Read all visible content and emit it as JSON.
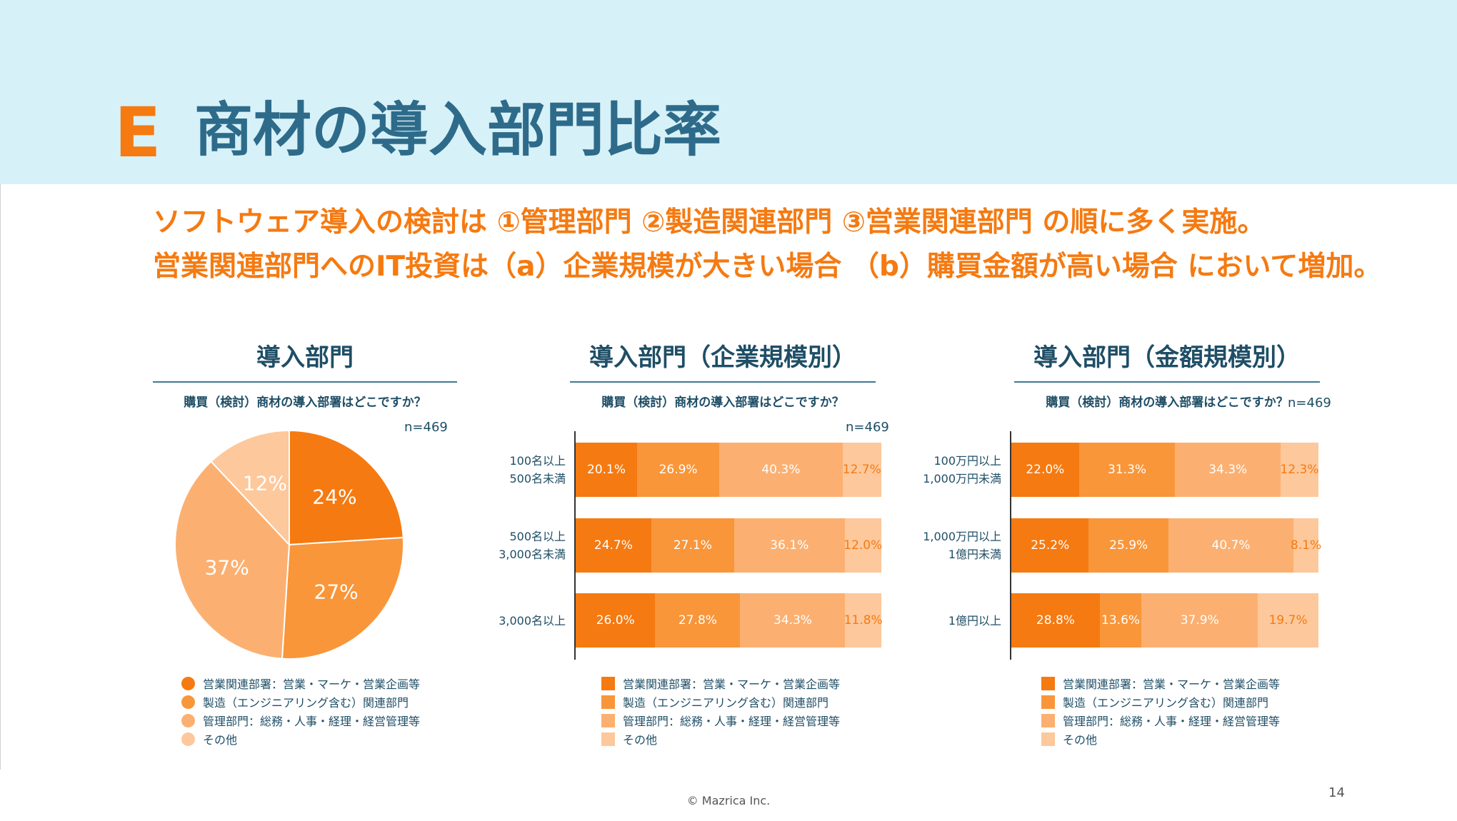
{
  "header": {
    "section_letter": "E",
    "title": "商材の導入部門比率"
  },
  "lead": {
    "line1": "ソフトウェア導入の検討は ①管理部門 ②製造関連部門 ③営業関連部門 の順に多く実施。",
    "line2": "営業関連部門へのIT投資は（a）企業規模が大きい場合 （b）購買金額が高い場合 において増加。"
  },
  "colors": {
    "sales": "#f57a11",
    "manufacturing": "#f9963a",
    "admin": "#fbb071",
    "other": "#fdc89b",
    "navy": "#1f4e66",
    "orange_text": "#f57a11"
  },
  "legend": [
    "営業関連部署：営業・マーケ・営業企画等",
    "製造（エンジニアリング含む）関連部門",
    "管理部門：総務・人事・経理・経営管理等",
    "その他"
  ],
  "chart_data": [
    {
      "type": "pie",
      "title": "導入部門",
      "subtitle": "購買（検討）商材の導入部署はどこですか？",
      "n_label": "n=469",
      "slices": [
        {
          "name": "営業関連部署：営業・マーケ・営業企画等",
          "value": 24,
          "label": "24%"
        },
        {
          "name": "製造（エンジニアリング含む）関連部門",
          "value": 27,
          "label": "27%"
        },
        {
          "name": "管理部門：総務・人事・経理・経営管理等",
          "value": 37,
          "label": "37%"
        },
        {
          "name": "その他",
          "value": 12,
          "label": "12%"
        }
      ]
    },
    {
      "type": "bar",
      "stacked": true,
      "orientation": "horizontal",
      "title": "導入部門（企業規模別）",
      "subtitle": "購買（検討）商材の導入部署はどこですか？",
      "n_label": "n=469",
      "categories": [
        {
          "line1": "100名以上",
          "line2": "500名未満"
        },
        {
          "line1": "500名以上",
          "line2": "3,000名未満"
        },
        {
          "line1": "3,000名以上",
          "line2": ""
        }
      ],
      "series": [
        {
          "name": "営業関連部署：営業・マーケ・営業企画等",
          "values": [
            20.1,
            24.7,
            26.0
          ],
          "labels": [
            "20.1%",
            "24.7%",
            "26.0%"
          ]
        },
        {
          "name": "製造（エンジニアリング含む）関連部門",
          "values": [
            26.9,
            27.1,
            27.8
          ],
          "labels": [
            "26.9%",
            "27.1%",
            "27.8%"
          ]
        },
        {
          "name": "管理部門：総務・人事・経理・経営管理等",
          "values": [
            40.3,
            36.1,
            34.3
          ],
          "labels": [
            "40.3%",
            "36.1%",
            "34.3%"
          ]
        },
        {
          "name": "その他",
          "values": [
            12.7,
            12.0,
            11.8
          ],
          "labels": [
            "12.7%",
            "12.0%",
            "11.8%"
          ]
        }
      ]
    },
    {
      "type": "bar",
      "stacked": true,
      "orientation": "horizontal",
      "title": "導入部門（金額規模別）",
      "subtitle": "購買（検討）商材の導入部署はどこですか？",
      "n_label": "n=469",
      "categories": [
        {
          "line1": "100万円以上",
          "line2": "1,000万円未満"
        },
        {
          "line1": "1,000万円以上",
          "line2": "1億円未満"
        },
        {
          "line1": "1億円以上",
          "line2": ""
        }
      ],
      "series": [
        {
          "name": "営業関連部署：営業・マーケ・営業企画等",
          "values": [
            22.0,
            25.2,
            28.8
          ],
          "labels": [
            "22.0%",
            "25.2%",
            "28.8%"
          ]
        },
        {
          "name": "製造（エンジニアリング含む）関連部門",
          "values": [
            31.3,
            25.9,
            13.6
          ],
          "labels": [
            "31.3%",
            "25.9%",
            "13.6%"
          ]
        },
        {
          "name": "管理部門：総務・人事・経理・経営管理等",
          "values": [
            34.3,
            40.7,
            37.9
          ],
          "labels": [
            "34.3%",
            "40.7%",
            "37.9%"
          ]
        },
        {
          "name": "その他",
          "values": [
            12.3,
            8.1,
            19.7
          ],
          "labels": [
            "12.3%",
            "8.1%",
            "19.7%"
          ]
        }
      ]
    }
  ],
  "footer": {
    "copyright": "© Mazrica Inc.",
    "page_number": "14"
  }
}
